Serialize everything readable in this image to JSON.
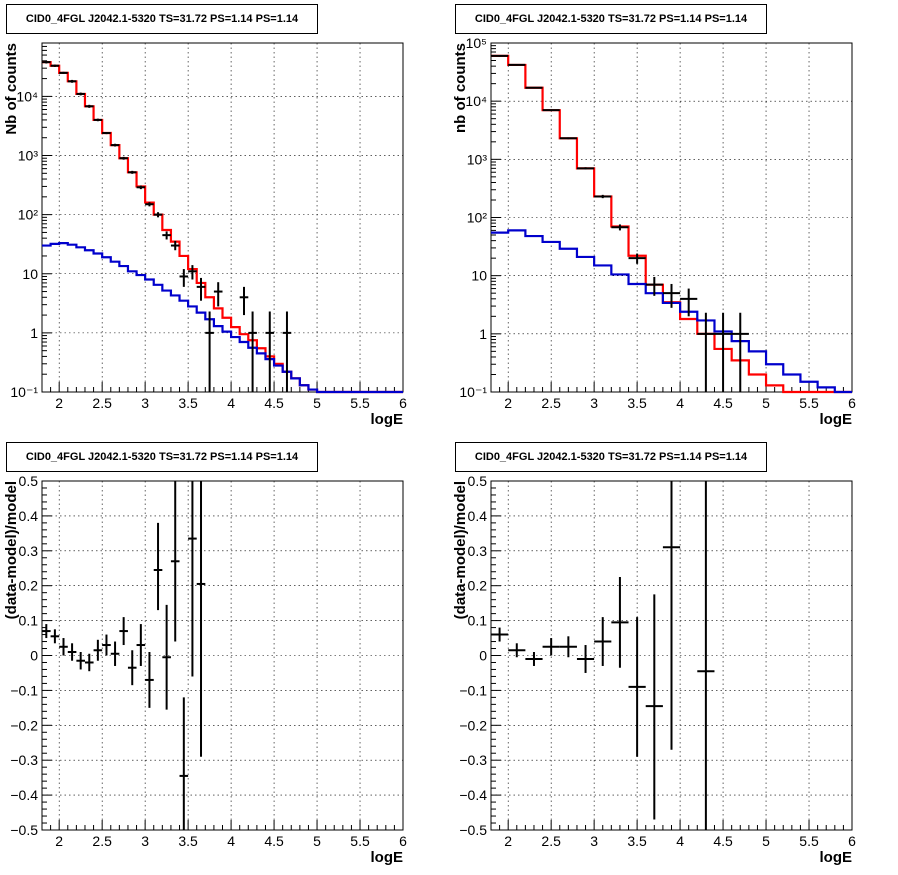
{
  "chart_data": [
    {
      "type": "step-histogram",
      "title": "CID0_4FGL J2042.1-5320 TS=31.72 PS=1.14 PS=1.14",
      "xlabel": "logE",
      "ylabel": "Nb of counts",
      "xlim": [
        1.8,
        6.0
      ],
      "ylim": [
        0.1,
        80000
      ],
      "yscale": "log",
      "grid": true,
      "xticks": [
        "2",
        "2.5",
        "3",
        "3.5",
        "4",
        "4.5",
        "5",
        "5.5",
        "6"
      ],
      "xtick_values": [
        2,
        2.5,
        3,
        3.5,
        4,
        4.5,
        5,
        5.5,
        6
      ],
      "yticks": [
        "10⁻¹",
        "1",
        "10",
        "10²",
        "10³",
        "10⁴"
      ],
      "ytick_values": [
        0.1,
        1,
        10,
        100,
        1000,
        10000
      ],
      "bin_width": 0.1,
      "series": [
        {
          "color": "#ff0000",
          "x": [
            1.8,
            1.9,
            2.0,
            2.1,
            2.2,
            2.3,
            2.4,
            2.5,
            2.6,
            2.7,
            2.8,
            2.9,
            3.0,
            3.1,
            3.2,
            3.3,
            3.4,
            3.5,
            3.6,
            3.7,
            3.8,
            3.9,
            4.0,
            4.1,
            4.2,
            4.3,
            4.4,
            4.5,
            4.6,
            4.7,
            4.8,
            4.9,
            5.0,
            5.1,
            5.2,
            5.3,
            5.4,
            5.5,
            5.6,
            5.7,
            5.8,
            5.9
          ],
          "values": [
            38000,
            33000,
            25000,
            18000,
            11000,
            6800,
            4000,
            2400,
            1500,
            900,
            520,
            300,
            160,
            100,
            55,
            35,
            20,
            12,
            7,
            4,
            2.6,
            1.8,
            1.25,
            0.95,
            0.75,
            0.55,
            0.4,
            0.3,
            0.22,
            0.17,
            0.13,
            0.11,
            0.1,
            0.1,
            0.1,
            0.1,
            0.1,
            0.1,
            0.1,
            0.1,
            0.1,
            0.1
          ]
        },
        {
          "color": "#0000cc",
          "x": [
            1.8,
            1.9,
            2.0,
            2.1,
            2.2,
            2.3,
            2.4,
            2.5,
            2.6,
            2.7,
            2.8,
            2.9,
            3.0,
            3.1,
            3.2,
            3.3,
            3.4,
            3.5,
            3.6,
            3.7,
            3.8,
            3.9,
            4.0,
            4.1,
            4.2,
            4.3,
            4.4,
            4.5,
            4.6,
            4.7,
            4.8,
            4.9,
            5.0,
            5.1,
            5.2,
            5.3,
            5.4,
            5.5,
            5.6,
            5.7,
            5.8,
            5.9
          ],
          "values": [
            30,
            32,
            33,
            31,
            28,
            25,
            22,
            19,
            16,
            13.5,
            11,
            9.5,
            8,
            6.5,
            5.2,
            4.3,
            3.5,
            2.8,
            2.2,
            1.7,
            1.3,
            1.05,
            0.85,
            0.7,
            0.56,
            0.45,
            0.36,
            0.28,
            0.22,
            0.17,
            0.13,
            0.11,
            0.1,
            0.1,
            0.1,
            0.1,
            0.1,
            0.1,
            0.1,
            0.1,
            0.1,
            0.1
          ]
        }
      ],
      "points": [
        {
          "x": 1.85,
          "y": 38000,
          "lo": 36000,
          "hi": 40000
        },
        {
          "x": 1.95,
          "y": 33000,
          "lo": 31500,
          "hi": 34500
        },
        {
          "x": 2.05,
          "y": 25000,
          "lo": 24000,
          "hi": 26000
        },
        {
          "x": 2.15,
          "y": 18000,
          "lo": 17000,
          "hi": 19000
        },
        {
          "x": 2.25,
          "y": 11000,
          "lo": 10400,
          "hi": 11600
        },
        {
          "x": 2.35,
          "y": 6800,
          "lo": 6400,
          "hi": 7200
        },
        {
          "x": 2.45,
          "y": 4000,
          "lo": 3800,
          "hi": 4200
        },
        {
          "x": 2.55,
          "y": 2400,
          "lo": 2300,
          "hi": 2500
        },
        {
          "x": 2.65,
          "y": 1500,
          "lo": 1420,
          "hi": 1580
        },
        {
          "x": 2.75,
          "y": 900,
          "lo": 850,
          "hi": 950
        },
        {
          "x": 2.85,
          "y": 520,
          "lo": 490,
          "hi": 550
        },
        {
          "x": 2.95,
          "y": 290,
          "lo": 270,
          "hi": 310
        },
        {
          "x": 3.05,
          "y": 150,
          "lo": 138,
          "hi": 162
        },
        {
          "x": 3.15,
          "y": 100,
          "lo": 90,
          "hi": 110
        },
        {
          "x": 3.25,
          "y": 45,
          "lo": 38,
          "hi": 52
        },
        {
          "x": 3.35,
          "y": 30,
          "lo": 25,
          "hi": 36
        },
        {
          "x": 3.45,
          "y": 9,
          "lo": 6,
          "hi": 12
        },
        {
          "x": 3.55,
          "y": 11,
          "lo": 8,
          "hi": 14
        },
        {
          "x": 3.65,
          "y": 6,
          "lo": 3.5,
          "hi": 8.5
        },
        {
          "x": 3.75,
          "y": 1,
          "lo": 0.1,
          "hi": 2.3
        },
        {
          "x": 3.85,
          "y": 5,
          "lo": 2.8,
          "hi": 7.2
        },
        {
          "x": 4.15,
          "y": 4,
          "lo": 2,
          "hi": 6
        },
        {
          "x": 4.25,
          "y": 1,
          "lo": 0.1,
          "hi": 2.3
        },
        {
          "x": 4.45,
          "y": 1,
          "lo": 0.1,
          "hi": 2.3
        },
        {
          "x": 4.65,
          "y": 1,
          "lo": 0.1,
          "hi": 2.3
        }
      ]
    },
    {
      "type": "step-histogram",
      "title": "CID0_4FGL J2042.1-5320 TS=31.72 PS=1.14 PS=1.14",
      "xlabel": "logE",
      "ylabel": "nb of counts",
      "xlim": [
        1.8,
        6.0
      ],
      "ylim": [
        0.1,
        100000
      ],
      "yscale": "log",
      "grid": true,
      "xticks": [
        "2",
        "2.5",
        "3",
        "3.5",
        "4",
        "4.5",
        "5",
        "5.5",
        "6"
      ],
      "xtick_values": [
        2,
        2.5,
        3,
        3.5,
        4,
        4.5,
        5,
        5.5,
        6
      ],
      "yticks": [
        "10⁻¹",
        "1",
        "10",
        "10²",
        "10³",
        "10⁴",
        "10⁵"
      ],
      "ytick_values": [
        0.1,
        1,
        10,
        100,
        1000,
        10000,
        100000
      ],
      "bin_width": 0.2,
      "series": [
        {
          "color": "#ff0000",
          "x": [
            1.8,
            2.0,
            2.2,
            2.4,
            2.6,
            2.8,
            3.0,
            3.2,
            3.4,
            3.6,
            3.8,
            4.0,
            4.2,
            4.4,
            4.6,
            4.8,
            5.0,
            5.2,
            5.4,
            5.6,
            5.8
          ],
          "values": [
            60000,
            42000,
            17000,
            7000,
            2300,
            700,
            230,
            70,
            22,
            7,
            3.5,
            1.8,
            1.0,
            0.55,
            0.35,
            0.2,
            0.13,
            0.1,
            0.1,
            0.1,
            0.1
          ]
        },
        {
          "color": "#0000cc",
          "x": [
            1.8,
            2.0,
            2.2,
            2.4,
            2.6,
            2.8,
            3.0,
            3.2,
            3.4,
            3.6,
            3.8,
            4.0,
            4.2,
            4.4,
            4.6,
            4.8,
            5.0,
            5.2,
            5.4,
            5.6,
            5.8
          ],
          "values": [
            55,
            60,
            48,
            38,
            29,
            21,
            15,
            10.5,
            7.2,
            5,
            3.4,
            2.4,
            1.7,
            1.1,
            0.75,
            0.5,
            0.3,
            0.2,
            0.15,
            0.12,
            0.1
          ]
        }
      ],
      "points": [
        {
          "x": 1.9,
          "y": 60000,
          "lo": 58000,
          "hi": 62000
        },
        {
          "x": 2.1,
          "y": 42000,
          "lo": 41000,
          "hi": 43000
        },
        {
          "x": 2.3,
          "y": 17000,
          "lo": 16500,
          "hi": 17500
        },
        {
          "x": 2.5,
          "y": 7000,
          "lo": 6800,
          "hi": 7200
        },
        {
          "x": 2.7,
          "y": 2300,
          "lo": 2220,
          "hi": 2380
        },
        {
          "x": 2.9,
          "y": 700,
          "lo": 670,
          "hi": 730
        },
        {
          "x": 3.1,
          "y": 230,
          "lo": 215,
          "hi": 245
        },
        {
          "x": 3.3,
          "y": 68,
          "lo": 60,
          "hi": 76
        },
        {
          "x": 3.5,
          "y": 20,
          "lo": 16,
          "hi": 24
        },
        {
          "x": 3.7,
          "y": 7,
          "lo": 4.5,
          "hi": 9.5
        },
        {
          "x": 3.9,
          "y": 5,
          "lo": 2.8,
          "hi": 7.2
        },
        {
          "x": 4.1,
          "y": 4,
          "lo": 2,
          "hi": 6
        },
        {
          "x": 4.3,
          "y": 1,
          "lo": 0.1,
          "hi": 2.3
        },
        {
          "x": 4.5,
          "y": 1,
          "lo": 0.1,
          "hi": 2.3
        },
        {
          "x": 4.7,
          "y": 1,
          "lo": 0.1,
          "hi": 2.3
        }
      ]
    },
    {
      "type": "scatter-errorbar",
      "title": "CID0_4FGL J2042.1-5320 TS=31.72 PS=1.14 PS=1.14",
      "xlabel": "logE",
      "ylabel": "(data-model)/model",
      "xlim": [
        1.8,
        6.0
      ],
      "ylim": [
        -0.5,
        0.5
      ],
      "yscale": "linear",
      "grid": true,
      "xticks": [
        "2",
        "2.5",
        "3",
        "3.5",
        "4",
        "4.5",
        "5",
        "5.5",
        "6"
      ],
      "xtick_values": [
        2,
        2.5,
        3,
        3.5,
        4,
        4.5,
        5,
        5.5,
        6
      ],
      "yticks": [
        "−0.5",
        "−0.4",
        "−0.3",
        "−0.2",
        "−0.1",
        "0",
        "0.1",
        "0.2",
        "0.3",
        "0.4",
        "0.5"
      ],
      "ytick_values": [
        -0.5,
        -0.4,
        -0.3,
        -0.2,
        -0.1,
        0,
        0.1,
        0.2,
        0.3,
        0.4,
        0.5
      ],
      "bin_width": 0.1,
      "points": [
        {
          "x": 1.85,
          "y": 0.07,
          "lo": 0.05,
          "hi": 0.09
        },
        {
          "x": 1.95,
          "y": 0.055,
          "lo": 0.035,
          "hi": 0.075
        },
        {
          "x": 2.05,
          "y": 0.025,
          "lo": 0.0,
          "hi": 0.05
        },
        {
          "x": 2.15,
          "y": 0.01,
          "lo": -0.015,
          "hi": 0.035
        },
        {
          "x": 2.25,
          "y": -0.015,
          "lo": -0.04,
          "hi": 0.01
        },
        {
          "x": 2.35,
          "y": -0.02,
          "lo": -0.045,
          "hi": 0.005
        },
        {
          "x": 2.45,
          "y": 0.015,
          "lo": -0.015,
          "hi": 0.045
        },
        {
          "x": 2.55,
          "y": 0.03,
          "lo": 0.0,
          "hi": 0.06
        },
        {
          "x": 2.65,
          "y": 0.005,
          "lo": -0.03,
          "hi": 0.04
        },
        {
          "x": 2.75,
          "y": 0.07,
          "lo": 0.03,
          "hi": 0.11
        },
        {
          "x": 2.85,
          "y": -0.035,
          "lo": -0.085,
          "hi": 0.015
        },
        {
          "x": 2.95,
          "y": 0.03,
          "lo": -0.03,
          "hi": 0.09
        },
        {
          "x": 3.05,
          "y": -0.07,
          "lo": -0.15,
          "hi": 0.01
        },
        {
          "x": 3.15,
          "y": 0.245,
          "lo": 0.13,
          "hi": 0.38
        },
        {
          "x": 3.25,
          "y": -0.005,
          "lo": -0.155,
          "hi": 0.145
        },
        {
          "x": 3.35,
          "y": 0.27,
          "lo": 0.04,
          "hi": 0.5
        },
        {
          "x": 3.45,
          "y": -0.345,
          "lo": -0.5,
          "hi": -0.12
        },
        {
          "x": 3.55,
          "y": 0.335,
          "lo": -0.06,
          "hi": 0.5
        },
        {
          "x": 3.65,
          "y": 0.205,
          "lo": -0.29,
          "hi": 0.5
        }
      ]
    },
    {
      "type": "scatter-errorbar",
      "title": "CID0_4FGL J2042.1-5320 TS=31.72 PS=1.14 PS=1.14",
      "xlabel": "logE",
      "ylabel": "(data-model)/model",
      "xlim": [
        1.8,
        6.0
      ],
      "ylim": [
        -0.5,
        0.5
      ],
      "yscale": "linear",
      "grid": true,
      "xticks": [
        "2",
        "2.5",
        "3",
        "3.5",
        "4",
        "4.5",
        "5",
        "5.5",
        "6"
      ],
      "xtick_values": [
        2,
        2.5,
        3,
        3.5,
        4,
        4.5,
        5,
        5.5,
        6
      ],
      "yticks": [
        "−0.5",
        "−0.4",
        "−0.3",
        "−0.2",
        "−0.1",
        "0",
        "0.1",
        "0.2",
        "0.3",
        "0.4",
        "0.5"
      ],
      "ytick_values": [
        -0.5,
        -0.4,
        -0.3,
        -0.2,
        -0.1,
        0,
        0.1,
        0.2,
        0.3,
        0.4,
        0.5
      ],
      "bin_width": 0.2,
      "points": [
        {
          "x": 1.9,
          "y": 0.06,
          "lo": 0.04,
          "hi": 0.08
        },
        {
          "x": 2.1,
          "y": 0.015,
          "lo": -0.005,
          "hi": 0.035
        },
        {
          "x": 2.3,
          "y": -0.01,
          "lo": -0.03,
          "hi": 0.01
        },
        {
          "x": 2.5,
          "y": 0.025,
          "lo": 0.0,
          "hi": 0.05
        },
        {
          "x": 2.7,
          "y": 0.025,
          "lo": -0.005,
          "hi": 0.055
        },
        {
          "x": 2.9,
          "y": -0.01,
          "lo": -0.05,
          "hi": 0.03
        },
        {
          "x": 3.1,
          "y": 0.04,
          "lo": -0.03,
          "hi": 0.11
        },
        {
          "x": 3.3,
          "y": 0.095,
          "lo": -0.035,
          "hi": 0.225
        },
        {
          "x": 3.5,
          "y": -0.09,
          "lo": -0.29,
          "hi": 0.11
        },
        {
          "x": 3.7,
          "y": -0.145,
          "lo": -0.47,
          "hi": 0.175
        },
        {
          "x": 3.9,
          "y": 0.31,
          "lo": -0.27,
          "hi": 0.5
        },
        {
          "x": 4.3,
          "y": -0.045,
          "lo": -0.5,
          "hi": 0.5
        }
      ]
    }
  ]
}
